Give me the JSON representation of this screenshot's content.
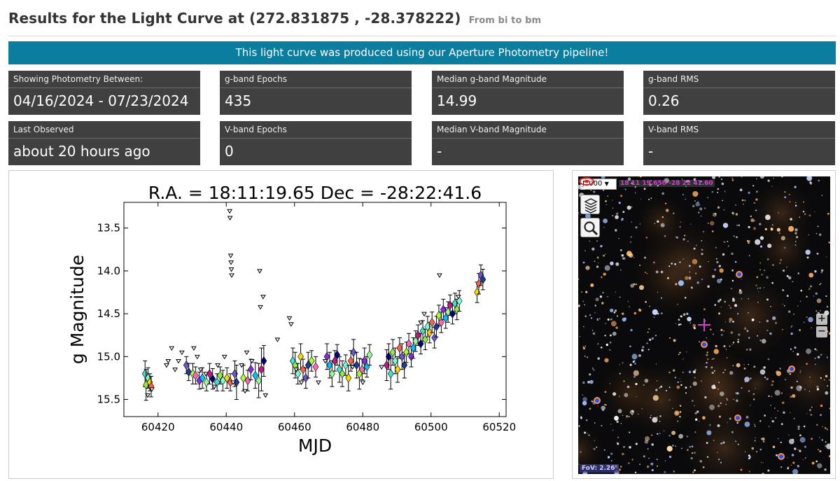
{
  "header": {
    "title": "Results for the Light Curve at (272.831875 , -28.378222)",
    "subtitle": "From bi to bm"
  },
  "banner": {
    "text": "This light curve was produced using our Aperture Photometry pipeline!"
  },
  "stats": [
    {
      "label": "Showing Photometry Between:",
      "value": "04/16/2024 - 07/23/2024"
    },
    {
      "label": "g-band Epochs",
      "value": "435"
    },
    {
      "label": "Median g-band Magnitude",
      "value": "14.99"
    },
    {
      "label": "g-band RMS",
      "value": "0.26"
    },
    {
      "label": "Last Observed",
      "value": "about 20 hours ago"
    },
    {
      "label": "V-band Epochs",
      "value": "0"
    },
    {
      "label": "Median V-band Magnitude",
      "value": "-"
    },
    {
      "label": "V-band RMS",
      "value": "-"
    }
  ],
  "chart_data": {
    "type": "scatter",
    "title": "R.A. = 18:11:19.65    Dec = -28:22:41.6",
    "xlabel": "MJD",
    "ylabel": "g Magnitude",
    "xlim": [
      60410,
      60522
    ],
    "ylim": [
      15.7,
      13.2
    ],
    "y_inverted": true,
    "xticks": [
      60420,
      60440,
      60460,
      60480,
      60500,
      60520
    ],
    "yticks": [
      13.5,
      14.0,
      14.5,
      15.0,
      15.5
    ],
    "grid": false,
    "detections": [
      [
        60416.2,
        15.2,
        0.15
      ],
      [
        60416.5,
        15.33,
        0.18
      ],
      [
        60417.1,
        15.25,
        0.12
      ],
      [
        60417.6,
        15.3,
        0.1
      ],
      [
        60418.0,
        15.35,
        0.12
      ],
      [
        60428.3,
        15.1,
        0.1
      ],
      [
        60429.0,
        15.18,
        0.1
      ],
      [
        60430.2,
        15.2,
        0.12
      ],
      [
        60431.0,
        15.22,
        0.1
      ],
      [
        60432.1,
        15.28,
        0.1
      ],
      [
        60433.0,
        15.25,
        0.12
      ],
      [
        60434.2,
        15.3,
        0.1
      ],
      [
        60435.1,
        15.2,
        0.12
      ],
      [
        60436.0,
        15.26,
        0.12
      ],
      [
        60437.3,
        15.3,
        0.1
      ],
      [
        60438.2,
        15.22,
        0.1
      ],
      [
        60439.0,
        15.28,
        0.12
      ],
      [
        60440.2,
        15.25,
        0.12
      ],
      [
        60441.2,
        15.3,
        0.1
      ],
      [
        60442.5,
        15.2,
        0.15
      ],
      [
        60443.0,
        15.3,
        0.2
      ],
      [
        60445.0,
        15.25,
        0.15
      ],
      [
        60446.3,
        15.28,
        0.12
      ],
      [
        60447.2,
        15.15,
        0.12
      ],
      [
        60448.5,
        15.22,
        0.15
      ],
      [
        60449.5,
        15.28,
        0.2
      ],
      [
        60450.3,
        15.15,
        0.25
      ],
      [
        60451.0,
        15.05,
        0.18
      ],
      [
        60459.5,
        15.05,
        0.15
      ],
      [
        60460.2,
        15.1,
        0.15
      ],
      [
        60461.0,
        15.2,
        0.12
      ],
      [
        60461.8,
        15.0,
        0.15
      ],
      [
        60462.5,
        15.15,
        0.12
      ],
      [
        60463.3,
        15.25,
        0.12
      ],
      [
        60464.0,
        15.1,
        0.15
      ],
      [
        60465.0,
        15.05,
        0.12
      ],
      [
        60466.2,
        15.12,
        0.12
      ],
      [
        60469.5,
        15.0,
        0.15
      ],
      [
        60470.3,
        15.1,
        0.15
      ],
      [
        60471.0,
        15.2,
        0.15
      ],
      [
        60471.8,
        15.05,
        0.12
      ],
      [
        60472.5,
        14.98,
        0.12
      ],
      [
        60473.2,
        15.15,
        0.15
      ],
      [
        60474.0,
        15.2,
        0.15
      ],
      [
        60475.0,
        15.1,
        0.12
      ],
      [
        60475.8,
        15.25,
        0.15
      ],
      [
        60476.5,
        15.05,
        0.12
      ],
      [
        60477.3,
        14.95,
        0.15
      ],
      [
        60478.2,
        15.1,
        0.15
      ],
      [
        60479.0,
        15.2,
        0.18
      ],
      [
        60479.8,
        15.15,
        0.12
      ],
      [
        60480.5,
        15.05,
        0.15
      ],
      [
        60481.2,
        15.12,
        0.12
      ],
      [
        60482.0,
        14.98,
        0.12
      ],
      [
        60487.0,
        15.1,
        0.18
      ],
      [
        60487.6,
        15.0,
        0.15
      ],
      [
        60488.2,
        15.2,
        0.18
      ],
      [
        60488.8,
        14.95,
        0.15
      ],
      [
        60489.5,
        15.05,
        0.15
      ],
      [
        60490.2,
        15.15,
        0.15
      ],
      [
        60490.8,
        14.9,
        0.12
      ],
      [
        60491.5,
        15.0,
        0.15
      ],
      [
        60492.2,
        15.1,
        0.15
      ],
      [
        60492.8,
        14.95,
        0.12
      ],
      [
        60493.5,
        14.85,
        0.12
      ],
      [
        60494.2,
        15.0,
        0.12
      ],
      [
        60494.8,
        14.9,
        0.12
      ],
      [
        60495.5,
        14.82,
        0.12
      ],
      [
        60496.2,
        14.75,
        0.12
      ],
      [
        60497.0,
        14.85,
        0.12
      ],
      [
        60497.6,
        14.7,
        0.12
      ],
      [
        60498.3,
        14.8,
        0.12
      ],
      [
        60499.0,
        14.65,
        0.12
      ],
      [
        60499.6,
        14.72,
        0.12
      ],
      [
        60500.3,
        14.6,
        0.12
      ],
      [
        60501.0,
        14.78,
        0.12
      ],
      [
        60501.6,
        14.65,
        0.12
      ],
      [
        60502.3,
        14.52,
        0.12
      ],
      [
        60503.0,
        14.6,
        0.12
      ],
      [
        60503.6,
        14.45,
        0.12
      ],
      [
        60504.3,
        14.55,
        0.12
      ],
      [
        60505.0,
        14.48,
        0.12
      ],
      [
        60505.6,
        14.4,
        0.12
      ],
      [
        60506.3,
        14.5,
        0.12
      ],
      [
        60507.0,
        14.38,
        0.12
      ],
      [
        60507.6,
        14.45,
        0.12
      ],
      [
        60508.3,
        14.35,
        0.12
      ],
      [
        60513.5,
        14.25,
        0.12
      ],
      [
        60514.0,
        14.15,
        0.12
      ],
      [
        60514.6,
        14.05,
        0.12
      ],
      [
        60515.2,
        14.1,
        0.12
      ]
    ],
    "upper_limits": [
      [
        60417.0,
        15.45
      ],
      [
        60418.2,
        15.38
      ],
      [
        60422.5,
        15.1
      ],
      [
        60423.0,
        15.05
      ],
      [
        60424.0,
        14.9
      ],
      [
        60425.0,
        15.15
      ],
      [
        60426.0,
        15.05
      ],
      [
        60427.0,
        14.95
      ],
      [
        60430.5,
        14.9
      ],
      [
        60431.5,
        15.0
      ],
      [
        60432.5,
        15.15
      ],
      [
        60434.0,
        15.2
      ],
      [
        60436.5,
        15.35
      ],
      [
        60437.5,
        15.1
      ],
      [
        60439.5,
        15.0
      ],
      [
        60441.0,
        13.3
      ],
      [
        60441.1,
        13.38
      ],
      [
        60441.3,
        13.82
      ],
      [
        60441.4,
        13.9
      ],
      [
        60441.5,
        13.98
      ],
      [
        60441.6,
        14.05
      ],
      [
        60442.0,
        15.3
      ],
      [
        60444.5,
        15.1
      ],
      [
        60445.5,
        15.4
      ],
      [
        60446.0,
        14.95
      ],
      [
        60447.5,
        15.05
      ],
      [
        60449.8,
        14.0
      ],
      [
        60450.0,
        14.42
      ],
      [
        60450.8,
        14.3
      ],
      [
        60451.5,
        15.45
      ],
      [
        60455.0,
        14.8
      ],
      [
        60458.5,
        14.55
      ],
      [
        60459.0,
        14.62
      ],
      [
        60460.5,
        15.15
      ],
      [
        60462.0,
        15.3
      ],
      [
        60467.0,
        15.3
      ],
      [
        60469.0,
        15.05
      ],
      [
        60477.0,
        15.12
      ],
      [
        60480.0,
        15.3
      ],
      [
        60485.5,
        15.12
      ],
      [
        60497.0,
        14.6
      ],
      [
        60498.0,
        14.5
      ],
      [
        60502.5,
        14.05
      ],
      [
        60508.0,
        14.3
      ]
    ]
  },
  "sky": {
    "frame": "J2000",
    "coords": "18 11 19.650 -28 22 41.60",
    "fov": "FoV: 2.26'",
    "zoom_in": "+",
    "zoom_out": "−"
  }
}
